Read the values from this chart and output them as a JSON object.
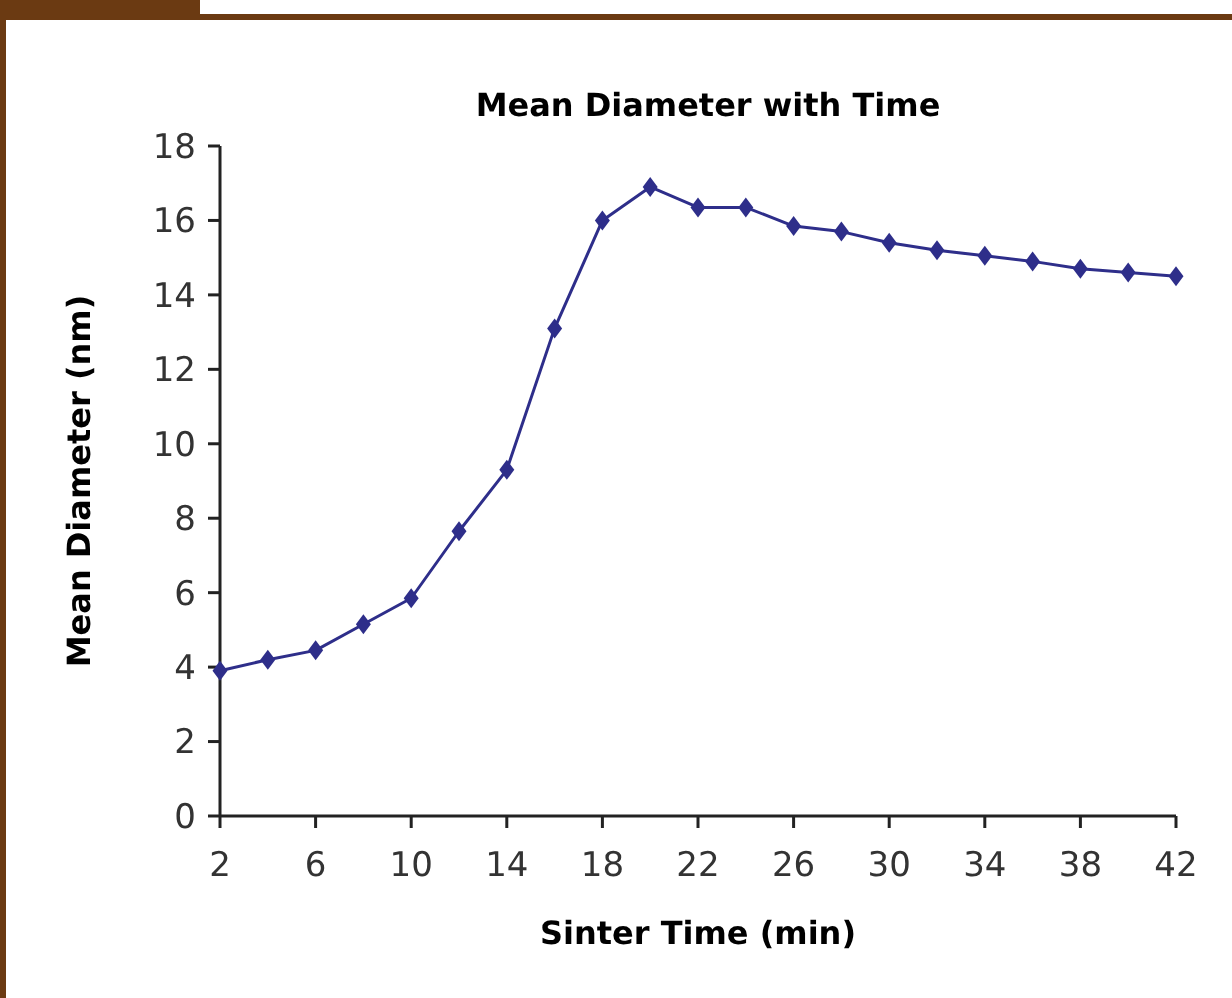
{
  "chart_data": {
    "type": "line",
    "title": "Mean Diameter with Time",
    "xlabel": "Sinter Time (min)",
    "ylabel": "Mean Diameter (nm)",
    "x": [
      2,
      4,
      6,
      8,
      10,
      12,
      14,
      16,
      18,
      20,
      22,
      24,
      26,
      28,
      30,
      32,
      34,
      36,
      38,
      40,
      42
    ],
    "series": [
      {
        "color": "#2e2e8a",
        "values": [
          3.9,
          4.2,
          4.45,
          5.15,
          5.85,
          7.65,
          9.3,
          13.1,
          16.0,
          16.9,
          16.35,
          16.35,
          15.85,
          15.7,
          15.4,
          15.2,
          15.05,
          14.9,
          14.7,
          14.6,
          14.5
        ]
      }
    ],
    "xlim": [
      2,
      42
    ],
    "xticks": [
      2,
      6,
      10,
      14,
      18,
      22,
      26,
      30,
      34,
      38,
      42
    ],
    "ylim": [
      0,
      18
    ],
    "yticks": [
      0,
      2,
      4,
      6,
      8,
      10,
      12,
      14,
      16,
      18
    ],
    "grid": false,
    "marker": "diamond",
    "line_style": "solid"
  }
}
